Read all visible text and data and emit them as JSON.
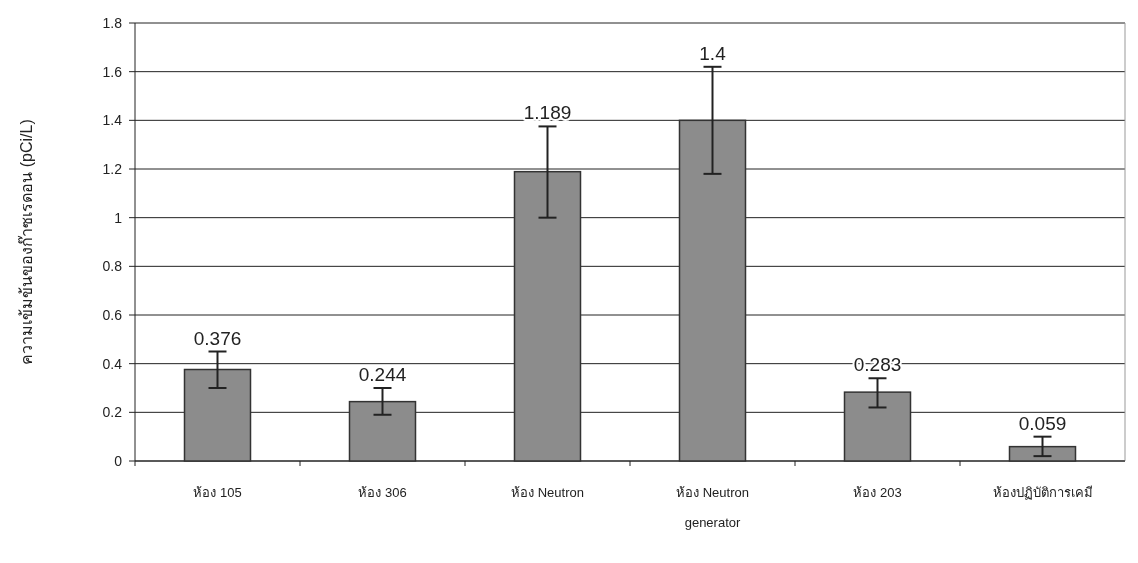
{
  "chart_data": {
    "type": "bar",
    "ylabel": "ความเข้มข้นของก๊าซเรดอน (pCi/L)",
    "categories": [
      "ห้อง 105",
      "ห้อง 306",
      "ห้อง Neutron",
      "ห้อง Neutron generator",
      "ห้อง 203",
      "ห้องปฏิบัติการเคมี"
    ],
    "values": [
      0.376,
      0.244,
      1.189,
      1.4,
      0.283,
      0.059
    ],
    "errors": [
      [
        0.3,
        0.45
      ],
      [
        0.19,
        0.3
      ],
      [
        1.0,
        1.375
      ],
      [
        1.18,
        1.62
      ],
      [
        0.22,
        0.34
      ],
      [
        0.02,
        0.1
      ]
    ],
    "color": "#8c8c8c",
    "data_labels": true,
    "ylim": [
      0,
      1.8
    ],
    "yticks": [
      0,
      0.2,
      0.4,
      0.6,
      0.8,
      1,
      1.2,
      1.4,
      1.6,
      1.8
    ],
    "grid": "y"
  }
}
